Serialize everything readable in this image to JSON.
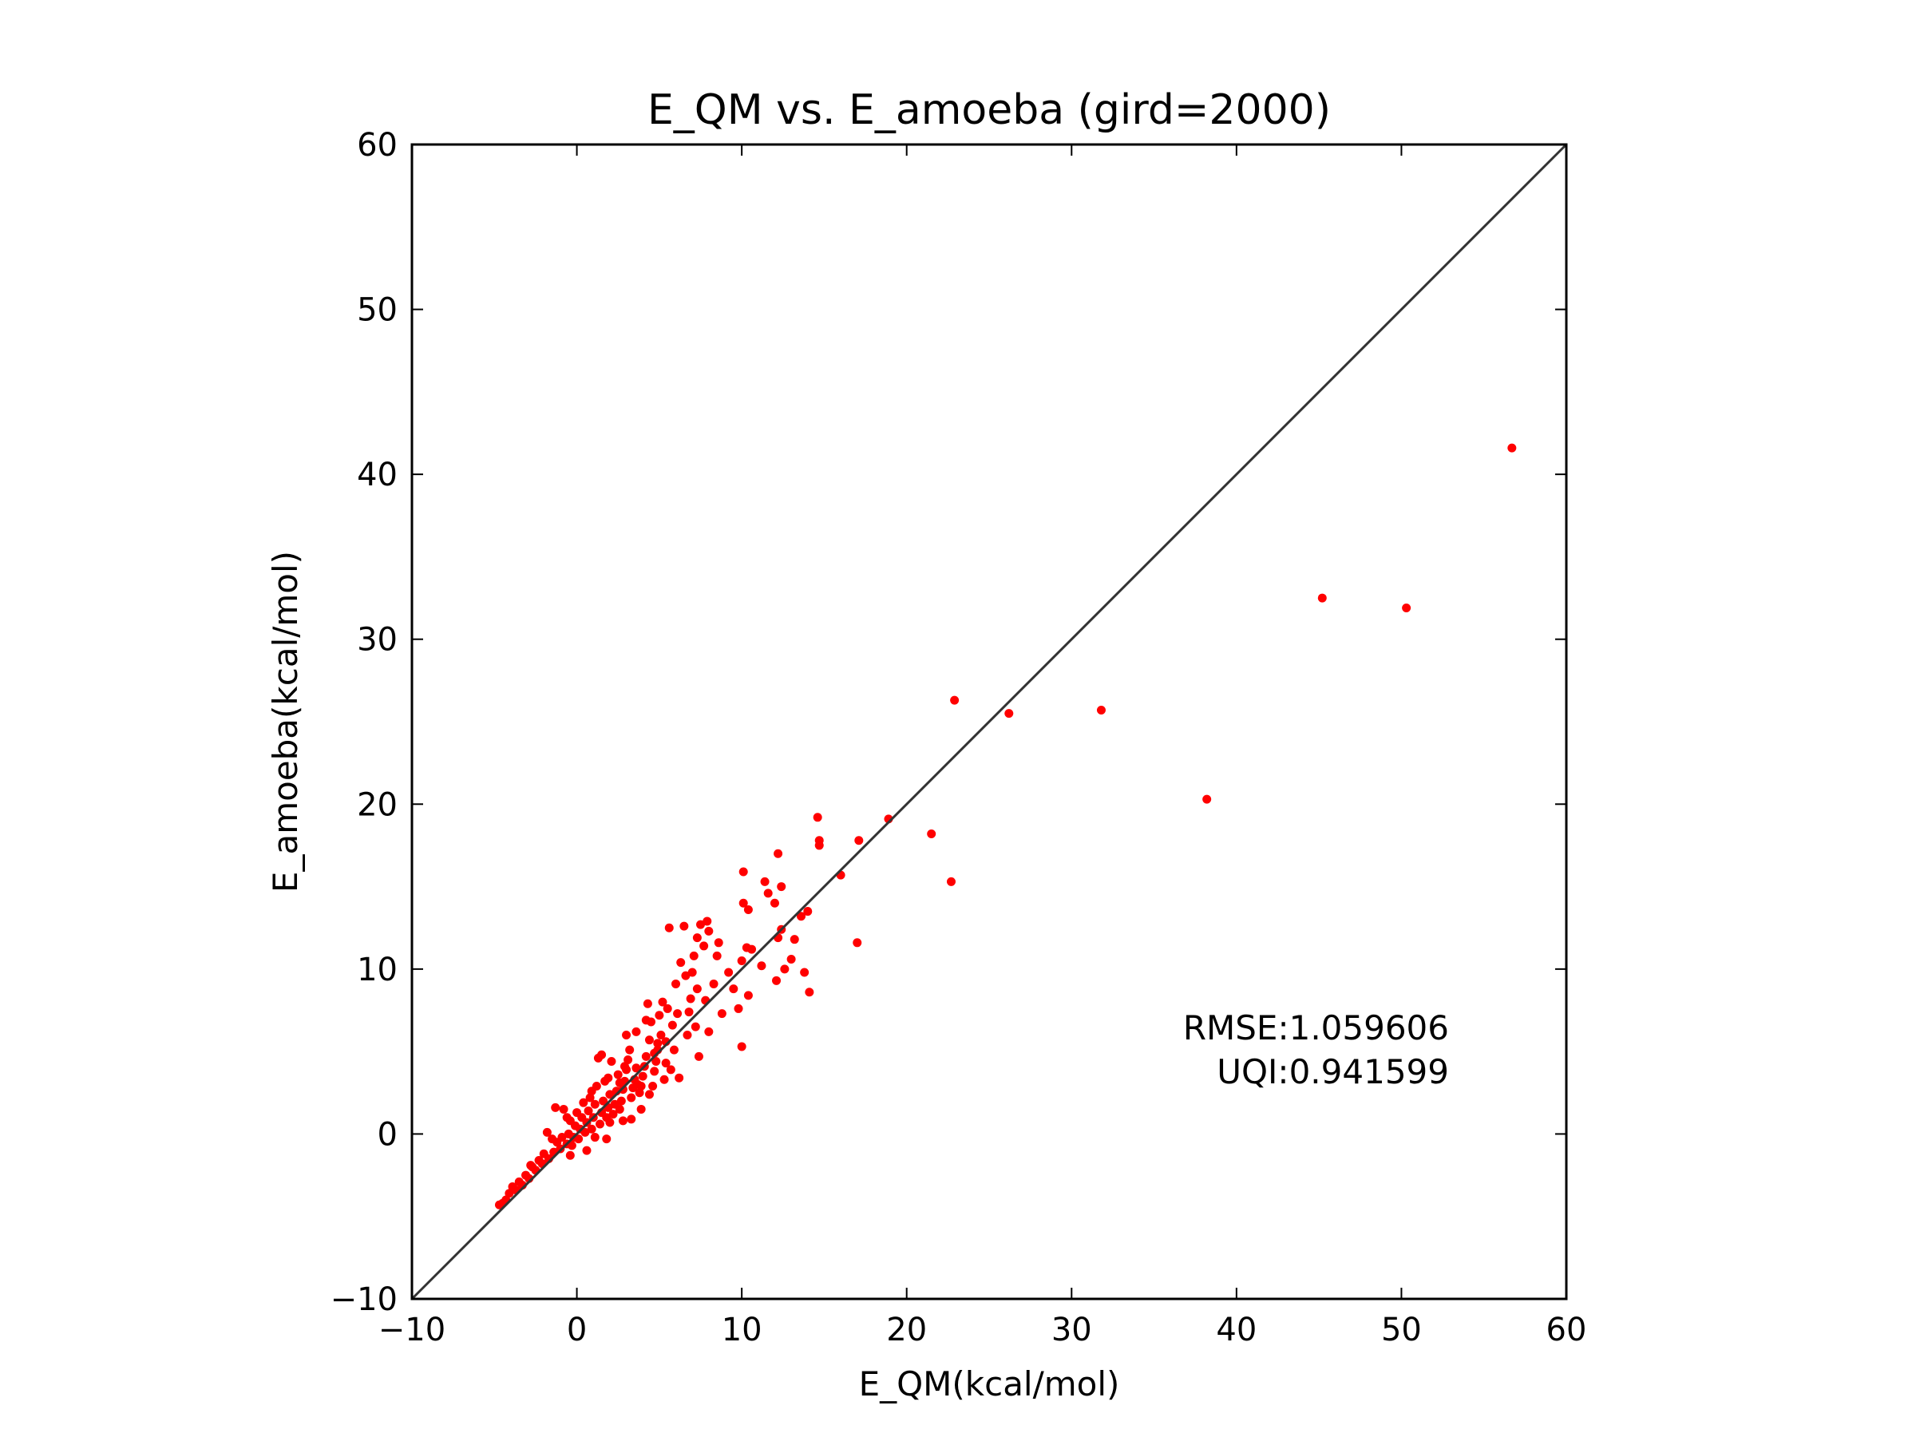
{
  "chart_data": {
    "type": "scatter",
    "title": "E_QM vs. E_amoeba (gird=2000)",
    "xlabel": "E_QM(kcal/mol)",
    "ylabel": "E_amoeba(kcal/mol)",
    "xlim": [
      -10,
      60
    ],
    "ylim": [
      -10,
      60
    ],
    "xticks": [
      -10,
      0,
      10,
      20,
      30,
      40,
      50,
      60
    ],
    "yticks": [
      -10,
      0,
      10,
      20,
      30,
      40,
      50,
      60
    ],
    "xtick_labels": [
      "−10",
      "0",
      "10",
      "20",
      "30",
      "40",
      "50",
      "60"
    ],
    "ytick_labels": [
      "−10",
      "0",
      "10",
      "20",
      "30",
      "40",
      "50",
      "60"
    ],
    "grid": false,
    "reference_line": {
      "from": [
        -10,
        -10
      ],
      "to": [
        60,
        60
      ],
      "color": "#333333"
    },
    "annotations": [
      "RMSE:1.059606",
      "UQI:0.941599"
    ],
    "colors": {
      "points": "#ff0000",
      "line": "#333333",
      "axes": "#000000"
    },
    "series": [
      {
        "points": [
          [
            56.7,
            41.6
          ],
          [
            45.2,
            32.5
          ],
          [
            50.3,
            31.9
          ],
          [
            38.2,
            20.3
          ],
          [
            31.8,
            25.7
          ],
          [
            26.2,
            25.5
          ],
          [
            22.9,
            26.3
          ],
          [
            21.5,
            18.2
          ],
          [
            22.7,
            15.3
          ],
          [
            18.9,
            19.1
          ],
          [
            17.1,
            17.8
          ],
          [
            17.0,
            11.6
          ],
          [
            16.0,
            15.7
          ],
          [
            14.6,
            19.2
          ],
          [
            14.7,
            17.8
          ],
          [
            14.7,
            17.5
          ],
          [
            14.0,
            13.5
          ],
          [
            14.1,
            8.6
          ],
          [
            13.6,
            13.2
          ],
          [
            13.8,
            9.8
          ],
          [
            13.0,
            10.6
          ],
          [
            12.2,
            17.0
          ],
          [
            12.4,
            15.0
          ],
          [
            12.0,
            14.0
          ],
          [
            11.4,
            15.3
          ],
          [
            11.6,
            14.6
          ],
          [
            12.4,
            12.4
          ],
          [
            12.2,
            11.9
          ],
          [
            12.6,
            10.0
          ],
          [
            12.1,
            9.3
          ],
          [
            10.1,
            15.9
          ],
          [
            10.1,
            14.0
          ],
          [
            10.4,
            13.6
          ],
          [
            10.6,
            11.2
          ],
          [
            10.3,
            11.3
          ],
          [
            10.0,
            10.5
          ],
          [
            10.4,
            8.4
          ],
          [
            10.0,
            5.3
          ],
          [
            9.2,
            9.8
          ],
          [
            9.5,
            8.8
          ],
          [
            8.6,
            11.6
          ],
          [
            8.3,
            9.1
          ],
          [
            7.9,
            12.9
          ],
          [
            8.0,
            12.3
          ],
          [
            7.5,
            12.7
          ],
          [
            7.7,
            11.4
          ],
          [
            7.3,
            11.9
          ],
          [
            7.1,
            10.8
          ],
          [
            7.0,
            9.8
          ],
          [
            7.3,
            8.8
          ],
          [
            7.2,
            6.5
          ],
          [
            8.0,
            6.2
          ],
          [
            7.4,
            4.7
          ],
          [
            6.9,
            8.2
          ],
          [
            6.6,
            9.6
          ],
          [
            6.3,
            10.4
          ],
          [
            6.0,
            9.1
          ],
          [
            6.1,
            7.3
          ],
          [
            5.9,
            5.1
          ],
          [
            5.6,
            12.5
          ],
          [
            5.5,
            7.6
          ],
          [
            5.8,
            6.6
          ],
          [
            5.4,
            5.6
          ],
          [
            5.2,
            8.0
          ],
          [
            5.0,
            7.2
          ],
          [
            5.1,
            6.0
          ],
          [
            4.9,
            5.1
          ],
          [
            4.8,
            4.4
          ],
          [
            4.7,
            3.8
          ],
          [
            4.6,
            2.9
          ],
          [
            4.2,
            6.9
          ],
          [
            4.4,
            5.7
          ],
          [
            4.2,
            4.7
          ],
          [
            4.1,
            4.1
          ],
          [
            4.0,
            3.5
          ],
          [
            3.9,
            2.9
          ],
          [
            3.8,
            2.5
          ],
          [
            3.6,
            4.0
          ],
          [
            3.5,
            3.3
          ],
          [
            3.4,
            2.8
          ],
          [
            3.3,
            2.2
          ],
          [
            3.2,
            5.1
          ],
          [
            3.1,
            4.5
          ],
          [
            3.0,
            3.9
          ],
          [
            2.9,
            3.2
          ],
          [
            2.8,
            2.7
          ],
          [
            2.7,
            2.0
          ],
          [
            2.6,
            1.5
          ],
          [
            2.5,
            3.6
          ],
          [
            2.4,
            2.6
          ],
          [
            2.3,
            1.8
          ],
          [
            2.2,
            1.2
          ],
          [
            2.1,
            4.4
          ],
          [
            2.0,
            2.4
          ],
          [
            1.9,
            1.6
          ],
          [
            1.8,
            1.0
          ],
          [
            1.7,
            3.2
          ],
          [
            1.6,
            2.0
          ],
          [
            1.5,
            1.3
          ],
          [
            1.4,
            0.6
          ],
          [
            1.3,
            4.6
          ],
          [
            1.2,
            2.9
          ],
          [
            1.1,
            1.8
          ],
          [
            1.0,
            1.0
          ],
          [
            0.9,
            0.3
          ],
          [
            0.8,
            2.2
          ],
          [
            0.7,
            1.4
          ],
          [
            0.6,
            0.7
          ],
          [
            0.5,
            0.1
          ],
          [
            0.4,
            1.9
          ],
          [
            0.3,
            1.0
          ],
          [
            0.2,
            0.3
          ],
          [
            0.1,
            -0.3
          ],
          [
            0.0,
            1.3
          ],
          [
            -0.1,
            0.5
          ],
          [
            -0.2,
            -0.2
          ],
          [
            -0.3,
            -0.7
          ],
          [
            -0.4,
            0.8
          ],
          [
            -0.5,
            0.0
          ],
          [
            -0.6,
            -0.6
          ],
          [
            -0.8,
            1.5
          ],
          [
            -0.9,
            -0.2
          ],
          [
            -1.0,
            -0.9
          ],
          [
            -1.2,
            -0.5
          ],
          [
            -1.4,
            -1.1
          ],
          [
            -1.5,
            -0.3
          ],
          [
            -1.7,
            -1.5
          ],
          [
            -1.8,
            0.1
          ],
          [
            -2.0,
            -1.2
          ],
          [
            -2.1,
            -1.8
          ],
          [
            -2.3,
            -1.6
          ],
          [
            -2.5,
            -2.2
          ],
          [
            -2.7,
            -2.0
          ],
          [
            -2.9,
            -2.7
          ],
          [
            -3.1,
            -2.5
          ],
          [
            -3.3,
            -3.1
          ],
          [
            -3.5,
            -2.9
          ],
          [
            -3.7,
            -3.4
          ],
          [
            -3.9,
            -3.2
          ],
          [
            -4.1,
            -3.6
          ],
          [
            -4.3,
            -4.0
          ],
          [
            -4.5,
            -4.2
          ],
          [
            -4.7,
            -4.3
          ],
          [
            -2.8,
            -1.9
          ],
          [
            -1.3,
            1.6
          ],
          [
            -0.6,
            1.0
          ],
          [
            1.5,
            4.8
          ],
          [
            2.6,
            3.1
          ],
          [
            3.6,
            6.2
          ],
          [
            4.3,
            7.9
          ],
          [
            4.5,
            6.8
          ],
          [
            5.3,
            3.3
          ],
          [
            6.2,
            3.4
          ],
          [
            6.7,
            6.0
          ],
          [
            3.0,
            6.0
          ],
          [
            2.0,
            0.7
          ],
          [
            1.1,
            -0.2
          ],
          [
            3.3,
            0.9
          ],
          [
            4.4,
            2.4
          ],
          [
            5.7,
            3.9
          ],
          [
            8.8,
            7.3
          ],
          [
            9.8,
            7.6
          ],
          [
            11.2,
            10.2
          ],
          [
            13.2,
            11.8
          ],
          [
            6.5,
            12.6
          ],
          [
            8.5,
            10.8
          ],
          [
            4.9,
            5.5
          ],
          [
            3.9,
            1.5
          ],
          [
            2.8,
            0.8
          ],
          [
            1.8,
            -0.3
          ],
          [
            0.6,
            -1.0
          ],
          [
            -0.4,
            -1.3
          ],
          [
            0.9,
            2.6
          ],
          [
            1.9,
            3.4
          ],
          [
            2.9,
            4.1
          ],
          [
            3.7,
            3.0
          ],
          [
            4.7,
            4.9
          ],
          [
            5.4,
            4.3
          ],
          [
            6.8,
            7.4
          ],
          [
            7.8,
            8.1
          ]
        ]
      }
    ]
  }
}
